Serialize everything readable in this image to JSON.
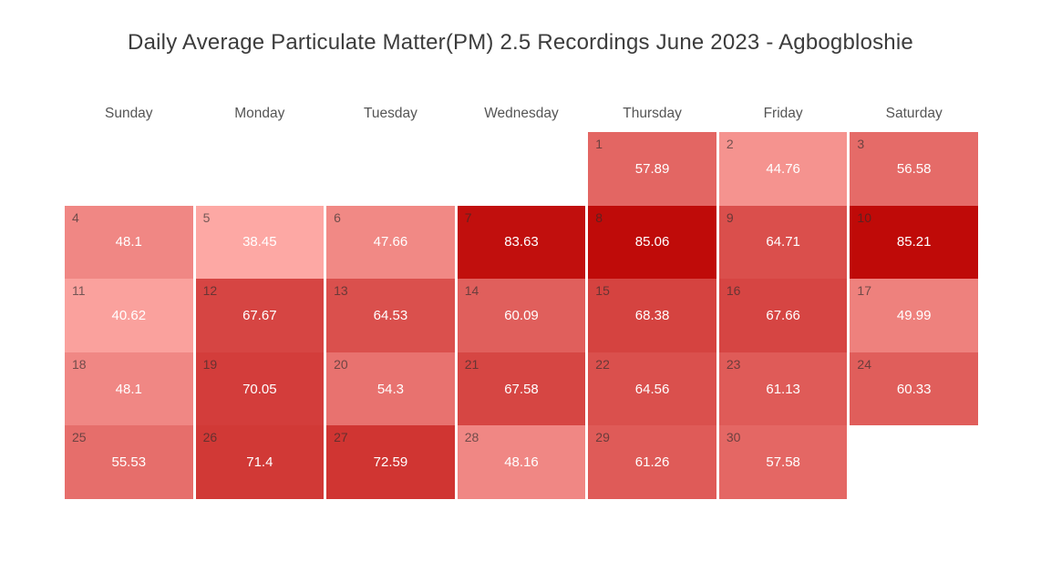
{
  "title": "Daily Average Particulate Matter(PM) 2.5 Recordings June 2023 - Agbogbloshie",
  "colors": {
    "background": "#ffffff",
    "title_text": "#3c3c3c",
    "weekday_text": "#555555",
    "day_number_text": "#2d2d2d",
    "value_text": "#ffffff",
    "scale_low": "#fda8a4",
    "scale_high": "#bf0a08"
  },
  "chart_data": {
    "type": "heatmap",
    "subtype": "calendar-heatmap",
    "title": "Daily Average Particulate Matter(PM) 2.5 Recordings June 2023 - Agbogbloshie",
    "month": "June 2023",
    "location": "Agbogbloshie",
    "metric": "Daily Average PM 2.5",
    "weekdays": [
      "Sunday",
      "Monday",
      "Tuesday",
      "Wednesday",
      "Thursday",
      "Friday",
      "Saturday"
    ],
    "value_range": [
      38.45,
      85.21
    ],
    "colormap": {
      "low_value_color": "#fda8a4",
      "high_value_color": "#bf0a08"
    },
    "grid": {
      "rows": 5,
      "cols": 7
    },
    "days": [
      {
        "day": 1,
        "row": 0,
        "col": 4,
        "value": 57.89,
        "label": "57.89",
        "color": "#e36663"
      },
      {
        "day": 2,
        "row": 0,
        "col": 5,
        "value": 44.76,
        "label": "44.76",
        "color": "#f5938f"
      },
      {
        "day": 3,
        "row": 0,
        "col": 6,
        "value": 56.58,
        "label": "56.58",
        "color": "#e56b68"
      },
      {
        "day": 4,
        "row": 1,
        "col": 0,
        "value": 48.1,
        "label": "48.1",
        "color": "#f08784"
      },
      {
        "day": 5,
        "row": 1,
        "col": 1,
        "value": 38.45,
        "label": "38.45",
        "color": "#fda8a4"
      },
      {
        "day": 6,
        "row": 1,
        "col": 2,
        "value": 47.66,
        "label": "47.66",
        "color": "#f18985"
      },
      {
        "day": 7,
        "row": 1,
        "col": 3,
        "value": 83.63,
        "label": "83.63",
        "color": "#c10f0d"
      },
      {
        "day": 8,
        "row": 1,
        "col": 4,
        "value": 85.06,
        "label": "85.06",
        "color": "#bf0b09"
      },
      {
        "day": 9,
        "row": 1,
        "col": 5,
        "value": 64.71,
        "label": "64.71",
        "color": "#da4f4c"
      },
      {
        "day": 10,
        "row": 1,
        "col": 6,
        "value": 85.21,
        "label": "85.21",
        "color": "#bf0a08"
      },
      {
        "day": 11,
        "row": 2,
        "col": 0,
        "value": 40.62,
        "label": "40.62",
        "color": "#faa19d"
      },
      {
        "day": 12,
        "row": 2,
        "col": 1,
        "value": 67.67,
        "label": "67.67",
        "color": "#d64543"
      },
      {
        "day": 13,
        "row": 2,
        "col": 2,
        "value": 64.53,
        "label": "64.53",
        "color": "#da504d"
      },
      {
        "day": 14,
        "row": 2,
        "col": 3,
        "value": 60.09,
        "label": "60.09",
        "color": "#e05f5c"
      },
      {
        "day": 15,
        "row": 2,
        "col": 4,
        "value": 68.38,
        "label": "68.38",
        "color": "#d54340"
      },
      {
        "day": 16,
        "row": 2,
        "col": 5,
        "value": 67.66,
        "label": "67.66",
        "color": "#d64543"
      },
      {
        "day": 17,
        "row": 2,
        "col": 6,
        "value": 49.99,
        "label": "49.99",
        "color": "#ee817d"
      },
      {
        "day": 18,
        "row": 3,
        "col": 0,
        "value": 48.1,
        "label": "48.1",
        "color": "#f08784"
      },
      {
        "day": 19,
        "row": 3,
        "col": 1,
        "value": 70.05,
        "label": "70.05",
        "color": "#d33d3b"
      },
      {
        "day": 20,
        "row": 3,
        "col": 2,
        "value": 54.3,
        "label": "54.3",
        "color": "#e8726f"
      },
      {
        "day": 21,
        "row": 3,
        "col": 3,
        "value": 67.58,
        "label": "67.58",
        "color": "#d64643"
      },
      {
        "day": 22,
        "row": 3,
        "col": 4,
        "value": 64.56,
        "label": "64.56",
        "color": "#da504d"
      },
      {
        "day": 23,
        "row": 3,
        "col": 5,
        "value": 61.13,
        "label": "61.13",
        "color": "#df5b58"
      },
      {
        "day": 24,
        "row": 3,
        "col": 6,
        "value": 60.33,
        "label": "60.33",
        "color": "#e05e5b"
      },
      {
        "day": 25,
        "row": 4,
        "col": 0,
        "value": 55.53,
        "label": "55.53",
        "color": "#e66e6b"
      },
      {
        "day": 26,
        "row": 4,
        "col": 1,
        "value": 71.4,
        "label": "71.4",
        "color": "#d13936"
      },
      {
        "day": 27,
        "row": 4,
        "col": 2,
        "value": 72.59,
        "label": "72.59",
        "color": "#d03532"
      },
      {
        "day": 28,
        "row": 4,
        "col": 3,
        "value": 48.16,
        "label": "48.16",
        "color": "#f08784"
      },
      {
        "day": 29,
        "row": 4,
        "col": 4,
        "value": 61.26,
        "label": "61.26",
        "color": "#df5b58"
      },
      {
        "day": 30,
        "row": 4,
        "col": 5,
        "value": 57.58,
        "label": "57.58",
        "color": "#e46764"
      }
    ]
  }
}
